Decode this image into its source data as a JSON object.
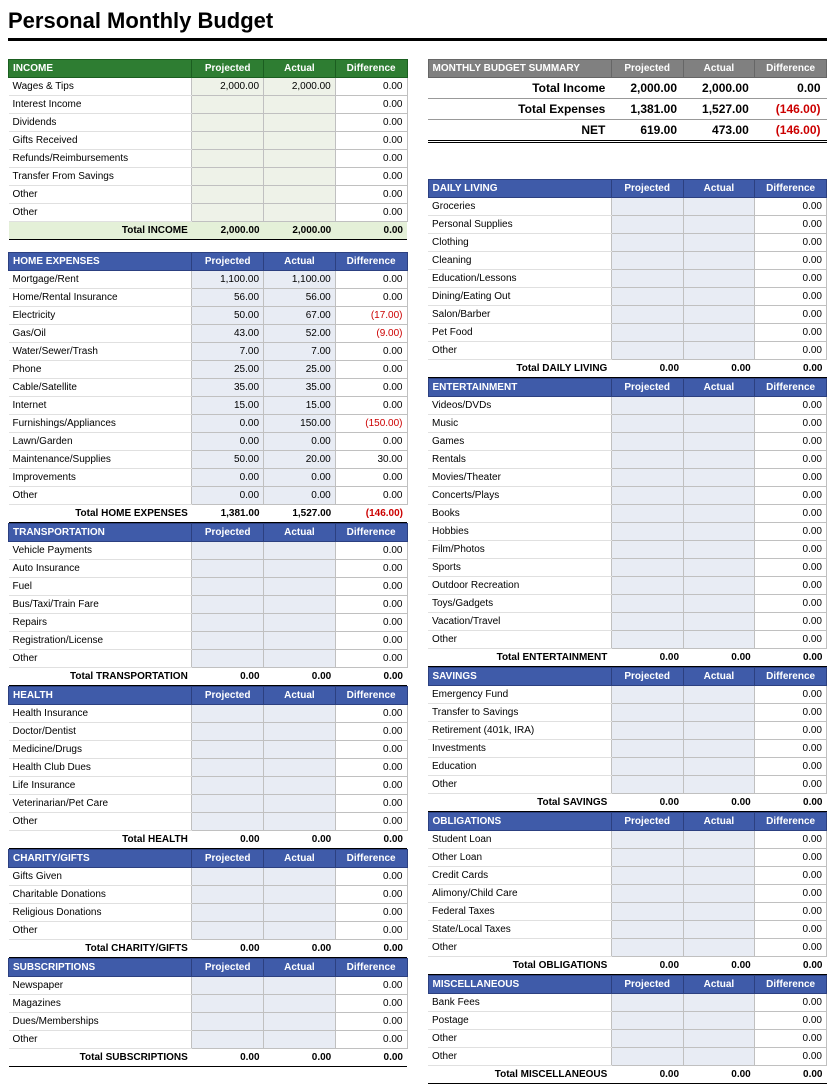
{
  "title": "Personal Monthly Budget",
  "labels": {
    "projected": "Projected",
    "actual": "Actual",
    "difference": "Difference"
  },
  "summary": {
    "header": "MONTHLY BUDGET SUMMARY",
    "rows": [
      {
        "label": "Total Income",
        "projected": "2,000.00",
        "actual": "2,000.00",
        "diff": "0.00",
        "neg": false
      },
      {
        "label": "Total Expenses",
        "projected": "1,381.00",
        "actual": "1,527.00",
        "diff": "(146.00)",
        "neg": true
      },
      {
        "label": "NET",
        "projected": "619.00",
        "actual": "473.00",
        "diff": "(146.00)",
        "neg": true,
        "net": true
      }
    ]
  },
  "income": {
    "header": "INCOME",
    "rows": [
      {
        "label": "Wages & Tips",
        "projected": "2,000.00",
        "actual": "2,000.00",
        "diff": "0.00"
      },
      {
        "label": "Interest Income",
        "projected": "",
        "actual": "",
        "diff": "0.00"
      },
      {
        "label": "Dividends",
        "projected": "",
        "actual": "",
        "diff": "0.00"
      },
      {
        "label": "Gifts Received",
        "projected": "",
        "actual": "",
        "diff": "0.00"
      },
      {
        "label": "Refunds/Reimbursements",
        "projected": "",
        "actual": "",
        "diff": "0.00"
      },
      {
        "label": "Transfer From Savings",
        "projected": "",
        "actual": "",
        "diff": "0.00"
      },
      {
        "label": "Other",
        "projected": "",
        "actual": "",
        "diff": "0.00"
      },
      {
        "label": "Other",
        "projected": "",
        "actual": "",
        "diff": "0.00"
      }
    ],
    "total": {
      "label": "Total INCOME",
      "projected": "2,000.00",
      "actual": "2,000.00",
      "diff": "0.00"
    }
  },
  "leftSections": [
    {
      "header": "HOME EXPENSES",
      "rows": [
        {
          "label": "Mortgage/Rent",
          "projected": "1,100.00",
          "actual": "1,100.00",
          "diff": "0.00"
        },
        {
          "label": "Home/Rental Insurance",
          "projected": "56.00",
          "actual": "56.00",
          "diff": "0.00"
        },
        {
          "label": "Electricity",
          "projected": "50.00",
          "actual": "67.00",
          "diff": "(17.00)",
          "neg": true
        },
        {
          "label": "Gas/Oil",
          "projected": "43.00",
          "actual": "52.00",
          "diff": "(9.00)",
          "neg": true
        },
        {
          "label": "Water/Sewer/Trash",
          "projected": "7.00",
          "actual": "7.00",
          "diff": "0.00"
        },
        {
          "label": "Phone",
          "projected": "25.00",
          "actual": "25.00",
          "diff": "0.00"
        },
        {
          "label": "Cable/Satellite",
          "projected": "35.00",
          "actual": "35.00",
          "diff": "0.00"
        },
        {
          "label": "Internet",
          "projected": "15.00",
          "actual": "15.00",
          "diff": "0.00"
        },
        {
          "label": "Furnishings/Appliances",
          "projected": "0.00",
          "actual": "150.00",
          "diff": "(150.00)",
          "neg": true
        },
        {
          "label": "Lawn/Garden",
          "projected": "0.00",
          "actual": "0.00",
          "diff": "0.00"
        },
        {
          "label": "Maintenance/Supplies",
          "projected": "50.00",
          "actual": "20.00",
          "diff": "30.00"
        },
        {
          "label": "Improvements",
          "projected": "0.00",
          "actual": "0.00",
          "diff": "0.00"
        },
        {
          "label": "Other",
          "projected": "0.00",
          "actual": "0.00",
          "diff": "0.00"
        }
      ],
      "total": {
        "label": "Total HOME EXPENSES",
        "projected": "1,381.00",
        "actual": "1,527.00",
        "diff": "(146.00)",
        "neg": true
      }
    },
    {
      "header": "TRANSPORTATION",
      "rows": [
        {
          "label": "Vehicle Payments",
          "projected": "",
          "actual": "",
          "diff": "0.00"
        },
        {
          "label": "Auto Insurance",
          "projected": "",
          "actual": "",
          "diff": "0.00"
        },
        {
          "label": "Fuel",
          "projected": "",
          "actual": "",
          "diff": "0.00"
        },
        {
          "label": "Bus/Taxi/Train Fare",
          "projected": "",
          "actual": "",
          "diff": "0.00"
        },
        {
          "label": "Repairs",
          "projected": "",
          "actual": "",
          "diff": "0.00"
        },
        {
          "label": "Registration/License",
          "projected": "",
          "actual": "",
          "diff": "0.00"
        },
        {
          "label": "Other",
          "projected": "",
          "actual": "",
          "diff": "0.00"
        }
      ],
      "total": {
        "label": "Total TRANSPORTATION",
        "projected": "0.00",
        "actual": "0.00",
        "diff": "0.00"
      }
    },
    {
      "header": "HEALTH",
      "rows": [
        {
          "label": "Health Insurance",
          "projected": "",
          "actual": "",
          "diff": "0.00"
        },
        {
          "label": "Doctor/Dentist",
          "projected": "",
          "actual": "",
          "diff": "0.00"
        },
        {
          "label": "Medicine/Drugs",
          "projected": "",
          "actual": "",
          "diff": "0.00"
        },
        {
          "label": "Health Club Dues",
          "projected": "",
          "actual": "",
          "diff": "0.00"
        },
        {
          "label": "Life Insurance",
          "projected": "",
          "actual": "",
          "diff": "0.00"
        },
        {
          "label": "Veterinarian/Pet Care",
          "projected": "",
          "actual": "",
          "diff": "0.00"
        },
        {
          "label": "Other",
          "projected": "",
          "actual": "",
          "diff": "0.00"
        }
      ],
      "total": {
        "label": "Total HEALTH",
        "projected": "0.00",
        "actual": "0.00",
        "diff": "0.00"
      }
    },
    {
      "header": "CHARITY/GIFTS",
      "rows": [
        {
          "label": "Gifts Given",
          "projected": "",
          "actual": "",
          "diff": "0.00"
        },
        {
          "label": "Charitable Donations",
          "projected": "",
          "actual": "",
          "diff": "0.00"
        },
        {
          "label": "Religious Donations",
          "projected": "",
          "actual": "",
          "diff": "0.00"
        },
        {
          "label": "Other",
          "projected": "",
          "actual": "",
          "diff": "0.00"
        }
      ],
      "total": {
        "label": "Total CHARITY/GIFTS",
        "projected": "0.00",
        "actual": "0.00",
        "diff": "0.00"
      }
    },
    {
      "header": "SUBSCRIPTIONS",
      "rows": [
        {
          "label": "Newspaper",
          "projected": "",
          "actual": "",
          "diff": "0.00"
        },
        {
          "label": "Magazines",
          "projected": "",
          "actual": "",
          "diff": "0.00"
        },
        {
          "label": "Dues/Memberships",
          "projected": "",
          "actual": "",
          "diff": "0.00"
        },
        {
          "label": "Other",
          "projected": "",
          "actual": "",
          "diff": "0.00"
        }
      ],
      "total": {
        "label": "Total SUBSCRIPTIONS",
        "projected": "0.00",
        "actual": "0.00",
        "diff": "0.00"
      }
    }
  ],
  "rightSections": [
    {
      "header": "DAILY LIVING",
      "rows": [
        {
          "label": "Groceries",
          "projected": "",
          "actual": "",
          "diff": "0.00"
        },
        {
          "label": "Personal Supplies",
          "projected": "",
          "actual": "",
          "diff": "0.00"
        },
        {
          "label": "Clothing",
          "projected": "",
          "actual": "",
          "diff": "0.00"
        },
        {
          "label": "Cleaning",
          "projected": "",
          "actual": "",
          "diff": "0.00"
        },
        {
          "label": "Education/Lessons",
          "projected": "",
          "actual": "",
          "diff": "0.00"
        },
        {
          "label": "Dining/Eating Out",
          "projected": "",
          "actual": "",
          "diff": "0.00"
        },
        {
          "label": "Salon/Barber",
          "projected": "",
          "actual": "",
          "diff": "0.00"
        },
        {
          "label": "Pet Food",
          "projected": "",
          "actual": "",
          "diff": "0.00"
        },
        {
          "label": "Other",
          "projected": "",
          "actual": "",
          "diff": "0.00"
        }
      ],
      "total": {
        "label": "Total DAILY LIVING",
        "projected": "0.00",
        "actual": "0.00",
        "diff": "0.00"
      }
    },
    {
      "header": "ENTERTAINMENT",
      "rows": [
        {
          "label": "Videos/DVDs",
          "projected": "",
          "actual": "",
          "diff": "0.00"
        },
        {
          "label": "Music",
          "projected": "",
          "actual": "",
          "diff": "0.00"
        },
        {
          "label": "Games",
          "projected": "",
          "actual": "",
          "diff": "0.00"
        },
        {
          "label": "Rentals",
          "projected": "",
          "actual": "",
          "diff": "0.00"
        },
        {
          "label": "Movies/Theater",
          "projected": "",
          "actual": "",
          "diff": "0.00"
        },
        {
          "label": "Concerts/Plays",
          "projected": "",
          "actual": "",
          "diff": "0.00"
        },
        {
          "label": "Books",
          "projected": "",
          "actual": "",
          "diff": "0.00"
        },
        {
          "label": "Hobbies",
          "projected": "",
          "actual": "",
          "diff": "0.00"
        },
        {
          "label": "Film/Photos",
          "projected": "",
          "actual": "",
          "diff": "0.00"
        },
        {
          "label": "Sports",
          "projected": "",
          "actual": "",
          "diff": "0.00"
        },
        {
          "label": "Outdoor Recreation",
          "projected": "",
          "actual": "",
          "diff": "0.00"
        },
        {
          "label": "Toys/Gadgets",
          "projected": "",
          "actual": "",
          "diff": "0.00"
        },
        {
          "label": "Vacation/Travel",
          "projected": "",
          "actual": "",
          "diff": "0.00"
        },
        {
          "label": "Other",
          "projected": "",
          "actual": "",
          "diff": "0.00"
        }
      ],
      "total": {
        "label": "Total ENTERTAINMENT",
        "projected": "0.00",
        "actual": "0.00",
        "diff": "0.00"
      }
    },
    {
      "header": "SAVINGS",
      "rows": [
        {
          "label": "Emergency Fund",
          "projected": "",
          "actual": "",
          "diff": "0.00"
        },
        {
          "label": "Transfer to Savings",
          "projected": "",
          "actual": "",
          "diff": "0.00"
        },
        {
          "label": "Retirement (401k, IRA)",
          "projected": "",
          "actual": "",
          "diff": "0.00"
        },
        {
          "label": "Investments",
          "projected": "",
          "actual": "",
          "diff": "0.00"
        },
        {
          "label": "Education",
          "projected": "",
          "actual": "",
          "diff": "0.00"
        },
        {
          "label": "Other",
          "projected": "",
          "actual": "",
          "diff": "0.00"
        }
      ],
      "total": {
        "label": "Total SAVINGS",
        "projected": "0.00",
        "actual": "0.00",
        "diff": "0.00"
      }
    },
    {
      "header": "OBLIGATIONS",
      "rows": [
        {
          "label": "Student Loan",
          "projected": "",
          "actual": "",
          "diff": "0.00"
        },
        {
          "label": "Other Loan",
          "projected": "",
          "actual": "",
          "diff": "0.00"
        },
        {
          "label": "Credit Cards",
          "projected": "",
          "actual": "",
          "diff": "0.00"
        },
        {
          "label": "Alimony/Child Care",
          "projected": "",
          "actual": "",
          "diff": "0.00"
        },
        {
          "label": "Federal Taxes",
          "projected": "",
          "actual": "",
          "diff": "0.00"
        },
        {
          "label": "State/Local Taxes",
          "projected": "",
          "actual": "",
          "diff": "0.00"
        },
        {
          "label": "Other",
          "projected": "",
          "actual": "",
          "diff": "0.00"
        }
      ],
      "total": {
        "label": "Total OBLIGATIONS",
        "projected": "0.00",
        "actual": "0.00",
        "diff": "0.00"
      }
    },
    {
      "header": "MISCELLANEOUS",
      "rows": [
        {
          "label": "Bank Fees",
          "projected": "",
          "actual": "",
          "diff": "0.00"
        },
        {
          "label": "Postage",
          "projected": "",
          "actual": "",
          "diff": "0.00"
        },
        {
          "label": "Other",
          "projected": "",
          "actual": "",
          "diff": "0.00"
        },
        {
          "label": "Other",
          "projected": "",
          "actual": "",
          "diff": "0.00"
        }
      ],
      "total": {
        "label": "Total MISCELLANEOUS",
        "projected": "0.00",
        "actual": "0.00",
        "diff": "0.00"
      }
    }
  ]
}
